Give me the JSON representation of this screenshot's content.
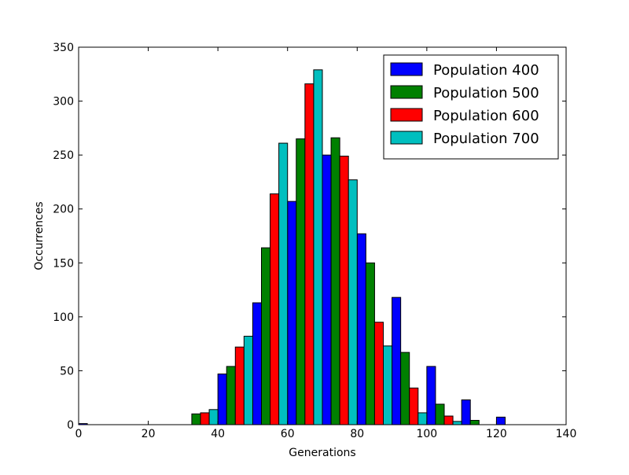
{
  "chart_data": {
    "type": "bar",
    "title": "",
    "xlabel": "Generations",
    "ylabel": "Occurrences",
    "xlim": [
      0,
      140
    ],
    "ylim": [
      0,
      350
    ],
    "xticks": [
      0,
      20,
      40,
      60,
      80,
      100,
      120,
      140
    ],
    "yticks": [
      0,
      50,
      100,
      150,
      200,
      250,
      300,
      350
    ],
    "grid": false,
    "legend_position": "top-right",
    "bin_width": 10,
    "bin_starts": [
      0,
      10,
      20,
      30,
      40,
      50,
      60,
      70,
      80,
      90,
      100,
      110,
      120,
      130
    ],
    "series": [
      {
        "name": "Population 400",
        "color": "#0000ff",
        "values": [
          1,
          0,
          0,
          0,
          47,
          113,
          207,
          250,
          177,
          118,
          54,
          23,
          7,
          0
        ]
      },
      {
        "name": "Population 500",
        "color": "#008000",
        "values": [
          0,
          0,
          0,
          10,
          54,
          164,
          265,
          266,
          150,
          67,
          19,
          4,
          0,
          0
        ]
      },
      {
        "name": "Population 600",
        "color": "#ff0000",
        "values": [
          0,
          0,
          0,
          11,
          72,
          214,
          316,
          249,
          95,
          34,
          8,
          0,
          0,
          0
        ]
      },
      {
        "name": "Population 700",
        "color": "#00bfbf",
        "values": [
          0,
          0,
          0,
          14,
          82,
          261,
          329,
          227,
          73,
          11,
          3,
          0,
          0,
          0
        ]
      }
    ]
  }
}
